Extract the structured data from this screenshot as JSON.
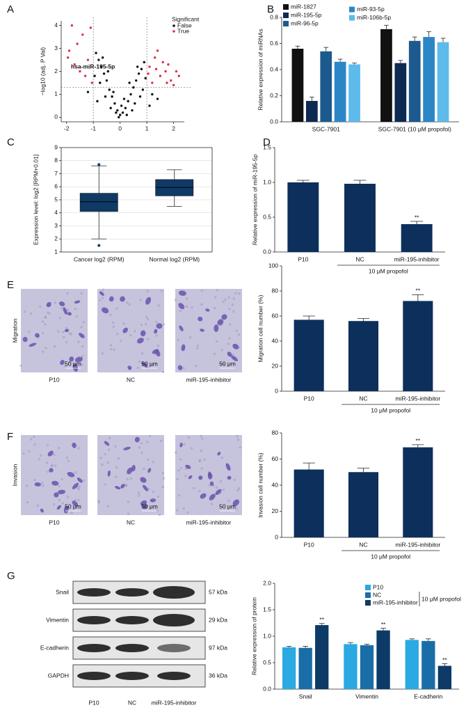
{
  "chart_data": [
    {
      "panel": "A",
      "type": "scatter",
      "ylabel": "−log10 (adj. P Val)",
      "xlim": [
        -2.2,
        2.4
      ],
      "ylim": [
        -0.2,
        4.2
      ],
      "xticks": [
        -2,
        -1,
        0,
        1,
        2
      ],
      "yticks": [
        0,
        1,
        2,
        3,
        4
      ],
      "vlines": [
        -1,
        1
      ],
      "hline": 1.3,
      "annotation": "hsa-miR-195-5p",
      "legend_title": "Significant",
      "legend": "upper right",
      "series": [
        {
          "name": "False",
          "color": "#111111",
          "x": [
            -0.9,
            -0.8,
            -0.7,
            -0.6,
            -0.5,
            -0.4,
            -0.3,
            -0.2,
            -0.1,
            0,
            0.1,
            0.2,
            0.3,
            0.4,
            0.5,
            0.6,
            0.7,
            0.8,
            0.9,
            -0.75,
            -0.55,
            -0.45,
            -0.35,
            -0.25,
            0.15,
            0.35,
            0.55,
            0.65,
            0.85,
            0.95,
            -0.95,
            -0.65,
            0.75,
            -0.15,
            0.05,
            1.2,
            1.4,
            -1.2,
            1.1,
            -0.85,
            0.45,
            0.25,
            -0.05
          ],
          "values": [
            2.8,
            2.5,
            2.2,
            1.9,
            1.6,
            1.2,
            0.9,
            0.6,
            0.3,
            0.1,
            0.2,
            0.4,
            0.7,
            1.0,
            1.3,
            1.6,
            1.9,
            2.1,
            2.4,
            1.5,
            0.9,
            2.0,
            0.4,
            1.1,
            0.8,
            1.5,
            0.6,
            2.2,
            1.2,
            1.7,
            1.8,
            2.6,
            0.9,
            0.2,
            0.5,
            1.0,
            0.8,
            1.1,
            0.5,
            0.7,
            0.3,
            0.1,
            0.0
          ]
        },
        {
          "name": "True",
          "color": "#e0304a",
          "x": [
            -1.8,
            -1.9,
            -1.6,
            -1.4,
            -1.2,
            -1.5,
            -1.7,
            -1.3,
            -1.1,
            -1.05,
            -1.95,
            1.1,
            1.3,
            1.5,
            1.7,
            1.9,
            2.1,
            1.2,
            1.6,
            1.4,
            1.8,
            2.0,
            1.05,
            1.35,
            1.75,
            2.2
          ],
          "values": [
            4.0,
            2.9,
            3.2,
            3.6,
            2.5,
            2.0,
            2.3,
            1.8,
            3.9,
            1.5,
            2.6,
            2.2,
            2.6,
            1.8,
            2.0,
            1.6,
            2.0,
            1.5,
            2.4,
            2.9,
            2.3,
            1.4,
            1.9,
            2.1,
            1.5,
            1.8
          ]
        }
      ]
    },
    {
      "panel": "B",
      "type": "bar",
      "ylabel": "Relative expression of miRNAs",
      "legend": "upper left",
      "categories": [
        "SGC-7901",
        "SGC-7901 (10 μM propofol)"
      ],
      "ylim": [
        0,
        0.8
      ],
      "yticks": [
        {
          "value": 0,
          "label": "0.0"
        },
        0.2,
        0.4,
        0.6,
        0.8
      ],
      "series": [
        {
          "name": "miR-1827",
          "color": "#111111",
          "values": [
            0.56,
            0.71
          ],
          "errors": [
            0.02,
            0.03
          ]
        },
        {
          "name": "miR-195-5p",
          "color": "#0d2a52",
          "values": [
            0.16,
            0.45
          ],
          "errors": [
            0.03,
            0.02
          ]
        },
        {
          "name": "miR-96-5p",
          "color": "#1c5a8e",
          "values": [
            0.54,
            0.62
          ],
          "errors": [
            0.03,
            0.03
          ]
        },
        {
          "name": "miR-93-5p",
          "color": "#2b86c6",
          "values": [
            0.46,
            0.65
          ],
          "errors": [
            0.02,
            0.04
          ]
        },
        {
          "name": "miR-106b-5p",
          "color": "#5cbbea",
          "values": [
            0.44,
            0.61
          ],
          "errors": [
            0.01,
            0.03
          ]
        }
      ]
    },
    {
      "panel": "C",
      "type": "box",
      "ylabel": "Expression level: log2 [RPM+0.01]",
      "color": "#0f3a66",
      "grid": true,
      "categories": [
        "Cancer log2 (RPM)",
        "Normal log2 (RPM)"
      ],
      "ylim": [
        1,
        9
      ],
      "yticks": [
        1,
        2,
        3,
        4,
        5,
        6,
        7,
        8,
        9
      ],
      "boxes": [
        {
          "whislo": 2.0,
          "q1": 4.1,
          "median": 4.85,
          "q3": 5.5,
          "whishi": 7.6,
          "fliers": [
            1.5,
            7.7
          ]
        },
        {
          "whislo": 4.5,
          "q1": 5.3,
          "median": 5.95,
          "q3": 6.55,
          "whishi": 7.3,
          "fliers": []
        }
      ]
    },
    {
      "panel": "D",
      "type": "bar",
      "ylabel": "Relative expression of miR-195-5p",
      "color": "#0d2f5c",
      "categories": [
        "P10",
        "NC",
        "miR-195-inhibitor"
      ],
      "group_label": "10 μM propofol",
      "values": [
        1.0,
        0.98,
        0.4
      ],
      "errors": [
        0.03,
        0.05,
        0.04
      ],
      "significance": [
        null,
        null,
        "**"
      ],
      "ylim": [
        0,
        1.5
      ],
      "yticks": [
        {
          "value": 0,
          "label": "0.0"
        },
        0.5,
        {
          "value": 1,
          "label": "1.0"
        },
        1.5
      ]
    },
    {
      "panel": "E",
      "type": "bar",
      "ylabel": "Migration cell number (%)",
      "color": "#0d2f5c",
      "categories": [
        "P10",
        "NC",
        "miR-195-inhibitor"
      ],
      "group_label": "10 μM propofol",
      "values": [
        57,
        56,
        72
      ],
      "errors": [
        3,
        2,
        5
      ],
      "significance": [
        null,
        null,
        "**"
      ],
      "ylim": [
        0,
        100
      ],
      "yticks": [
        0,
        20,
        40,
        60,
        80,
        100
      ]
    },
    {
      "panel": "F",
      "type": "bar",
      "ylabel": "Invasion cell number (%)",
      "color": "#0d2f5c",
      "categories": [
        "P10",
        "NC",
        "miR-195-inhibitor"
      ],
      "group_label": "10 μM propofol",
      "values": [
        52,
        50,
        69
      ],
      "errors": [
        5,
        3,
        2
      ],
      "significance": [
        null,
        null,
        "**"
      ],
      "ylim": [
        0,
        80
      ],
      "yticks": [
        0,
        20,
        40,
        60,
        80
      ]
    },
    {
      "panel": "G",
      "type": "bar",
      "ylabel": "Relative expression of protein",
      "legend": "upper right",
      "legend_note": "10 μM propofol",
      "categories": [
        "Snail",
        "Vimentin",
        "E-cadherin"
      ],
      "ylim": [
        0,
        2
      ],
      "yticks": [
        {
          "value": 0,
          "label": "0.0"
        },
        0.5,
        {
          "value": 1,
          "label": "1.0"
        },
        1.5,
        {
          "value": 2,
          "label": "2.0"
        }
      ],
      "series": [
        {
          "name": "P10",
          "color": "#2aa9e2",
          "values": [
            0.79,
            0.85,
            0.93
          ],
          "errors": [
            0.02,
            0.03,
            0.02
          ],
          "significance": [
            null,
            null,
            null
          ]
        },
        {
          "name": "NC",
          "color": "#1a6ea8",
          "values": [
            0.78,
            0.83,
            0.91
          ],
          "errors": [
            0.03,
            0.02,
            0.04
          ],
          "significance": [
            null,
            null,
            null
          ]
        },
        {
          "name": "miR-195-inhibitor",
          "color": "#0d3a66",
          "values": [
            1.21,
            1.11,
            0.44
          ],
          "errors": [
            0.03,
            0.04,
            0.04
          ],
          "significance": [
            "**",
            "**",
            "**"
          ]
        }
      ]
    }
  ],
  "micrographs": [
    {
      "row_label": "Migration",
      "scale_bar": "50 μm",
      "captions": [
        "P10",
        "NC",
        "miR-195-inhibitor"
      ]
    },
    {
      "row_label": "Invasion",
      "scale_bar": "50 μm",
      "captions": [
        "P10",
        "NC",
        "miR-195-inhibitor"
      ]
    }
  ],
  "blot": {
    "proteins": [
      {
        "name": "Snail",
        "size": "57 kDa"
      },
      {
        "name": "Vimentin",
        "size": "29 kDa"
      },
      {
        "name": "E-cadherin",
        "size": "97 kDa"
      },
      {
        "name": "GAPDH",
        "size": "36 kDa"
      }
    ],
    "lanes": [
      "P10",
      "NC",
      "miR-195-inhibitor"
    ]
  }
}
